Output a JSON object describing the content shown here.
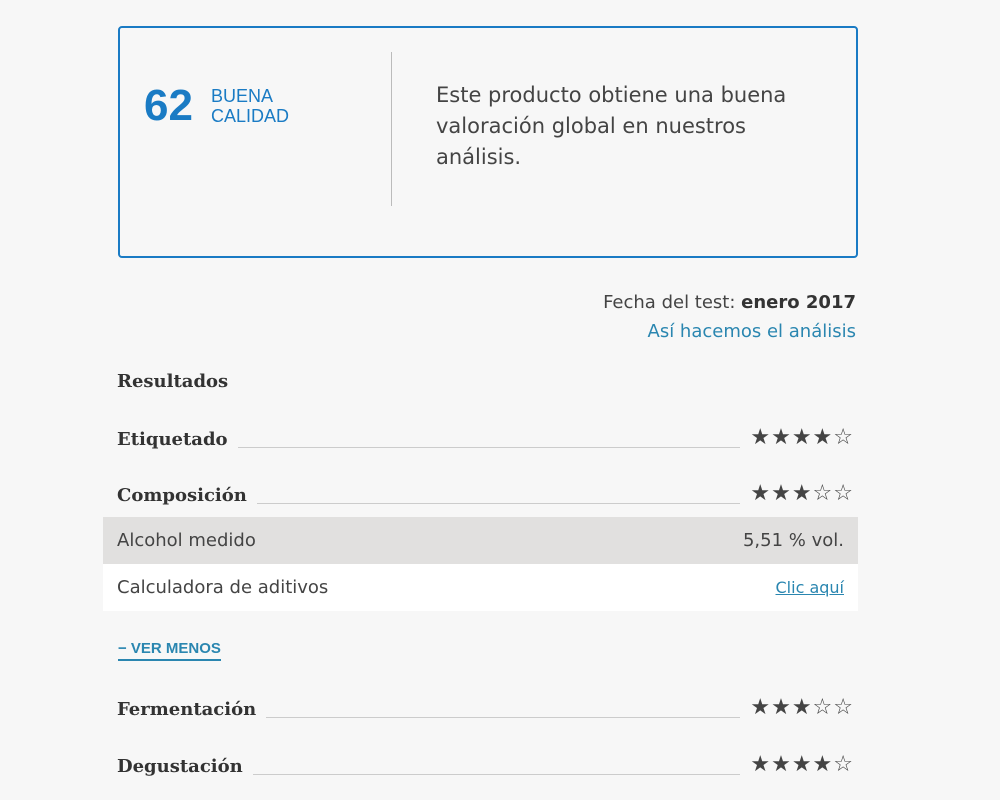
{
  "summary": {
    "score": "62",
    "quality_line1": "BUENA",
    "quality_line2": "CALIDAD",
    "description": "Este producto obtiene una buena valoración global en nuestros análisis.",
    "accent": "#1a7bc4"
  },
  "test_date_label": "Fecha del test:",
  "test_date": "enero 2017",
  "method_link": "Así hacemos el análisis",
  "results_title": "Resultados",
  "categories": [
    {
      "name": "Etiquetado",
      "stars": "★★★★☆",
      "rating": 4
    },
    {
      "name": "Composición",
      "stars": "★★★☆☆",
      "rating": 3
    },
    {
      "name": "Fermentación",
      "stars": "★★★☆☆",
      "rating": 3
    },
    {
      "name": "Degustación",
      "stars": "★★★★☆",
      "rating": 4
    }
  ],
  "details": [
    {
      "label": "Alcohol medido",
      "value": "5,51 % vol."
    },
    {
      "label": "Calculadora de aditivos",
      "value": "Clic aquí"
    }
  ],
  "toggle_label": "− VER MENOS"
}
